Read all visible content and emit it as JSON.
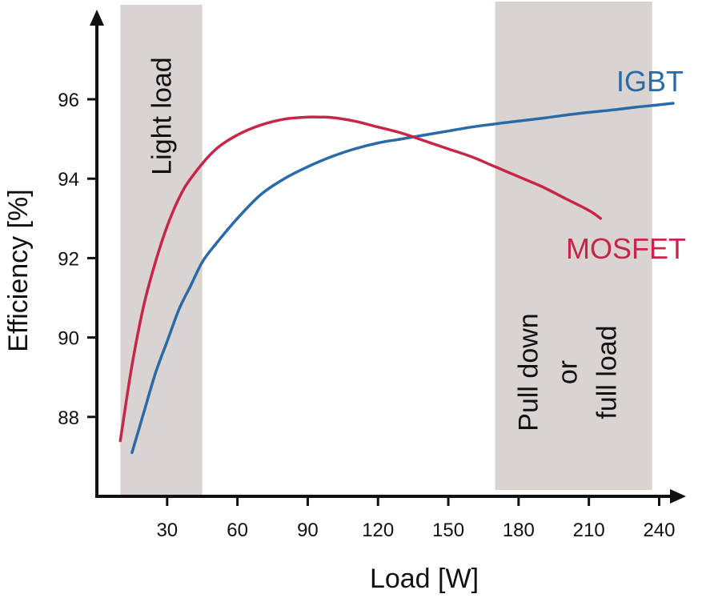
{
  "chart_data": {
    "type": "line",
    "xlabel": "Load [W]",
    "ylabel": "Efficiency [%]",
    "xlim": [
      0,
      252
    ],
    "ylim": [
      86.0,
      98.0
    ],
    "xticks": [
      30,
      60,
      90,
      120,
      150,
      180,
      210,
      240
    ],
    "yticks": [
      88,
      90,
      92,
      94,
      96
    ],
    "grid": false,
    "regions": [
      {
        "label": "Light load",
        "x": [
          10,
          45
        ]
      },
      {
        "label": "Pull down\nor\nfull load",
        "x": [
          170,
          237
        ]
      }
    ],
    "series": [
      {
        "name": "IGBT",
        "color": "#2a6aa8",
        "x": [
          15,
          20,
          25,
          30,
          35,
          40,
          45,
          50,
          60,
          70,
          80,
          90,
          100,
          110,
          120,
          130,
          140,
          150,
          160,
          170,
          180,
          190,
          200,
          210,
          220,
          230,
          240,
          246
        ],
        "y": [
          87.1,
          88.1,
          89.1,
          89.9,
          90.7,
          91.3,
          91.9,
          92.3,
          93.0,
          93.6,
          94.0,
          94.3,
          94.55,
          94.75,
          94.9,
          95.0,
          95.1,
          95.2,
          95.3,
          95.38,
          95.45,
          95.52,
          95.6,
          95.67,
          95.73,
          95.8,
          95.86,
          95.9
        ]
      },
      {
        "name": "MOSFET",
        "color": "#c8254a",
        "x": [
          10,
          15,
          20,
          25,
          30,
          35,
          40,
          50,
          60,
          70,
          80,
          90,
          95,
          100,
          110,
          120,
          130,
          140,
          150,
          160,
          170,
          180,
          190,
          200,
          210,
          215
        ],
        "y": [
          87.4,
          89.3,
          90.8,
          91.9,
          92.8,
          93.5,
          94.0,
          94.7,
          95.1,
          95.35,
          95.5,
          95.55,
          95.55,
          95.54,
          95.45,
          95.3,
          95.15,
          94.95,
          94.75,
          94.55,
          94.3,
          94.05,
          93.8,
          93.5,
          93.2,
          93.0
        ]
      }
    ]
  }
}
